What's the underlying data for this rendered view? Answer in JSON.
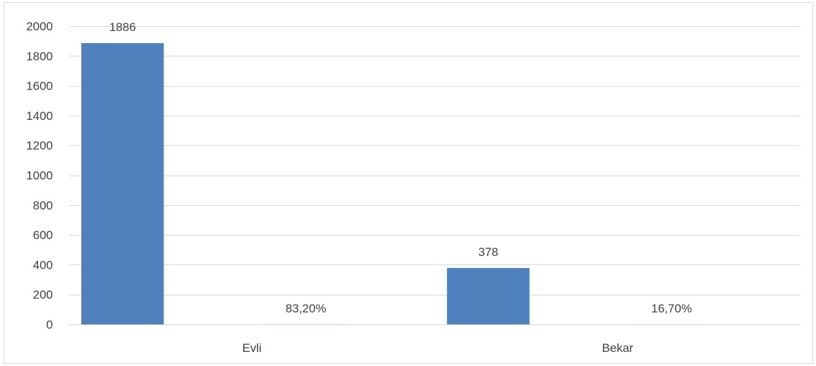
{
  "chart_data": {
    "type": "bar",
    "categories": [
      "Evli",
      "Bekar"
    ],
    "series": [
      {
        "values": [
          1886,
          378
        ],
        "labels": [
          "1886",
          "378"
        ],
        "color": "#4F81BD"
      },
      {
        "values": [
          0.832,
          0.167
        ],
        "labels": [
          "83,20%",
          "16,70%"
        ],
        "color": "#C0504D"
      }
    ],
    "ylim": [
      0,
      2000
    ],
    "yticks": [
      0,
      200,
      400,
      600,
      800,
      1000,
      1200,
      1400,
      1600,
      1800,
      2000
    ],
    "ytick_labels": [
      "0",
      "200",
      "400",
      "600",
      "800",
      "1000",
      "1200",
      "1400",
      "1600",
      "1800",
      "2000"
    ],
    "grid": true,
    "legend": "none"
  }
}
